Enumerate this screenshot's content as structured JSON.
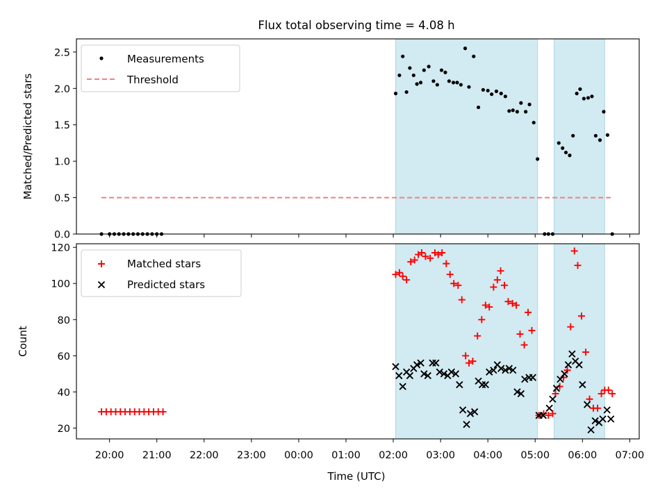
{
  "title": "Flux total observing time = 4.08 h",
  "colors": {
    "measurement": "#000000",
    "threshold": "#f08080",
    "matched": "#ff0000",
    "predicted": "#000000",
    "shade": "#add8e6"
  },
  "chart_data": [
    {
      "id": "ratio",
      "type": "scatter",
      "ylabel": "Matched/Predicted stars",
      "ylim": [
        0,
        2.68
      ],
      "yticks": [
        {
          "v": 0,
          "label": "0.0"
        },
        {
          "v": 0.5,
          "label": "0.5"
        },
        {
          "v": 1.0,
          "label": "1.0"
        },
        {
          "v": 1.5,
          "label": "1.5"
        },
        {
          "v": 2.0,
          "label": "2.0"
        },
        {
          "v": 2.5,
          "label": "2.5"
        }
      ],
      "legend": {
        "placement": "upper-left",
        "measurements_label": "Measurements",
        "threshold_label": "Threshold"
      },
      "threshold": {
        "value": 0.5,
        "x_range": [
          19.83,
          6.63
        ]
      },
      "series": [
        {
          "name": "Measurements",
          "x": [
            19.83,
            20.0,
            20.1,
            20.2,
            20.3,
            20.4,
            20.5,
            20.6,
            20.7,
            20.8,
            20.9,
            21.0,
            21.1,
            2.05,
            2.13,
            2.2,
            2.28,
            2.35,
            2.43,
            2.5,
            2.58,
            2.65,
            2.75,
            2.85,
            2.93,
            3.02,
            3.1,
            3.18,
            3.27,
            3.35,
            3.43,
            3.52,
            3.6,
            3.7,
            3.8,
            3.9,
            4.0,
            4.08,
            4.18,
            4.28,
            4.37,
            4.45,
            4.53,
            4.62,
            4.7,
            4.8,
            4.88,
            4.97,
            5.05,
            5.2,
            5.28,
            5.37,
            5.5,
            5.58,
            5.65,
            5.73,
            5.8,
            5.88,
            5.95,
            6.03,
            6.12,
            6.2,
            6.28,
            6.37,
            6.45,
            6.53,
            6.63
          ],
          "y": [
            0,
            0,
            0,
            0,
            0,
            0,
            0,
            0,
            0,
            0,
            0,
            0,
            0,
            1.93,
            2.18,
            2.44,
            1.95,
            2.28,
            2.18,
            2.06,
            2.08,
            2.25,
            2.3,
            2.1,
            2.05,
            2.25,
            2.22,
            2.1,
            2.08,
            2.08,
            2.05,
            2.55,
            2.02,
            2.44,
            1.74,
            1.98,
            1.97,
            1.92,
            1.96,
            1.93,
            1.89,
            1.69,
            1.7,
            1.68,
            1.8,
            1.68,
            1.78,
            1.53,
            1.03,
            0,
            0,
            0,
            1.25,
            1.18,
            1.12,
            1.08,
            1.35,
            1.93,
            1.99,
            1.86,
            1.87,
            1.89,
            1.35,
            1.29,
            1.68,
            1.36,
            0
          ]
        }
      ],
      "shaded_ranges": [
        [
          2.05,
          5.05
        ],
        [
          5.4,
          6.47
        ]
      ]
    },
    {
      "id": "counts",
      "type": "scatter",
      "ylabel": "Count",
      "xlabel": "Time (UTC)",
      "ylim": [
        14,
        122
      ],
      "yticks": [
        {
          "v": 20,
          "label": "20"
        },
        {
          "v": 40,
          "label": "40"
        },
        {
          "v": 60,
          "label": "60"
        },
        {
          "v": 80,
          "label": "80"
        },
        {
          "v": 100,
          "label": "100"
        },
        {
          "v": 120,
          "label": "120"
        }
      ],
      "xticks": [
        "20:00",
        "21:00",
        "22:00",
        "23:00",
        "00:00",
        "01:00",
        "02:00",
        "03:00",
        "04:00",
        "05:00",
        "06:00",
        "07:00"
      ],
      "legend": {
        "placement": "upper-left",
        "matched_label": "Matched stars",
        "predicted_label": "Predicted stars"
      },
      "series": [
        {
          "name": "Matched stars",
          "x": [
            19.83,
            19.93,
            20.03,
            20.13,
            20.23,
            20.33,
            20.43,
            20.53,
            20.63,
            20.73,
            20.83,
            20.93,
            21.03,
            21.13,
            2.05,
            2.13,
            2.2,
            2.28,
            2.37,
            2.45,
            2.53,
            2.6,
            2.68,
            2.78,
            2.88,
            2.95,
            3.03,
            3.12,
            3.2,
            3.28,
            3.37,
            3.45,
            3.53,
            3.6,
            3.68,
            3.78,
            3.87,
            3.95,
            4.03,
            4.12,
            4.2,
            4.27,
            4.35,
            4.43,
            4.52,
            4.6,
            4.68,
            4.77,
            4.85,
            4.93,
            5.08,
            5.18,
            5.28,
            5.37,
            5.43,
            5.52,
            5.6,
            5.68,
            5.75,
            5.83,
            5.9,
            5.98,
            6.07,
            6.15,
            6.23,
            6.32,
            6.4,
            6.47,
            6.55,
            6.63
          ],
          "y": [
            29,
            29,
            29,
            29,
            29,
            29,
            29,
            29,
            29,
            29,
            29,
            29,
            29,
            29,
            105,
            106,
            104,
            102,
            112,
            113,
            116,
            117,
            115,
            114,
            117,
            116,
            117,
            111,
            105,
            100,
            99,
            91,
            60,
            56,
            57,
            71,
            80,
            88,
            87,
            98,
            102,
            107,
            99,
            90,
            89,
            88,
            72,
            66,
            84,
            74,
            27,
            28,
            27,
            28,
            39,
            43,
            48,
            52,
            76,
            118,
            110,
            82,
            62,
            36,
            31,
            31,
            39,
            41,
            41,
            39
          ]
        },
        {
          "name": "Predicted stars",
          "x": [
            2.05,
            2.12,
            2.2,
            2.28,
            2.35,
            2.43,
            2.5,
            2.58,
            2.65,
            2.73,
            2.83,
            2.9,
            2.98,
            3.07,
            3.15,
            3.23,
            3.32,
            3.4,
            3.47,
            3.55,
            3.63,
            3.72,
            3.8,
            3.88,
            3.95,
            4.03,
            4.12,
            4.2,
            4.28,
            4.37,
            4.45,
            4.53,
            4.62,
            4.7,
            4.78,
            4.87,
            4.95,
            5.08,
            5.17,
            5.3,
            5.37,
            5.45,
            5.53,
            5.62,
            5.7,
            5.78,
            5.85,
            5.93,
            6.0,
            6.1,
            6.18,
            6.27,
            6.35,
            6.43,
            6.52,
            6.6
          ],
          "y": [
            54,
            49,
            43,
            51,
            49,
            53,
            55,
            56,
            50,
            49,
            56,
            56,
            51,
            50,
            49,
            51,
            50,
            44,
            30,
            22,
            28,
            29,
            46,
            44,
            44,
            51,
            52,
            55,
            53,
            52,
            53,
            52,
            40,
            39,
            47,
            48,
            48,
            27,
            27,
            31,
            36,
            42,
            47,
            50,
            55,
            61,
            57,
            55,
            44,
            33,
            19,
            24,
            23,
            25,
            30,
            25
          ]
        }
      ],
      "shaded_ranges": [
        [
          2.05,
          5.05
        ],
        [
          5.4,
          6.47
        ]
      ]
    }
  ]
}
